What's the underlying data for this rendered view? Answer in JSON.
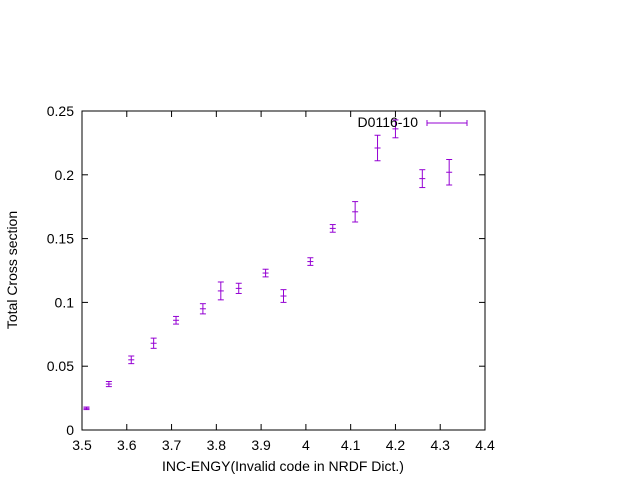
{
  "chart_data": {
    "type": "scatter",
    "title": "",
    "xlabel": "INC-ENGY(Invalid code in NRDF Dict.)",
    "ylabel": "Total Cross section",
    "xlim": [
      3.5,
      4.4
    ],
    "ylim": [
      0,
      0.25
    ],
    "xticks": [
      "3.5",
      "3.6",
      "3.7",
      "3.8",
      "3.9",
      "4",
      "4.1",
      "4.2",
      "4.3",
      "4.4"
    ],
    "yticks": [
      "0",
      "0.05",
      "0.1",
      "0.15",
      "0.2",
      "0.25"
    ],
    "grid": false,
    "legend_position": "top-right",
    "series": [
      {
        "name": "D0116-10",
        "color": "#9400d3",
        "points": [
          {
            "x": 3.51,
            "y": 0.017,
            "err": 0.001
          },
          {
            "x": 3.56,
            "y": 0.036,
            "err": 0.002
          },
          {
            "x": 3.61,
            "y": 0.055,
            "err": 0.003
          },
          {
            "x": 3.66,
            "y": 0.068,
            "err": 0.004
          },
          {
            "x": 3.71,
            "y": 0.086,
            "err": 0.003
          },
          {
            "x": 3.77,
            "y": 0.095,
            "err": 0.004
          },
          {
            "x": 3.81,
            "y": 0.109,
            "err": 0.007
          },
          {
            "x": 3.85,
            "y": 0.111,
            "err": 0.004
          },
          {
            "x": 3.91,
            "y": 0.123,
            "err": 0.003
          },
          {
            "x": 3.95,
            "y": 0.105,
            "err": 0.005
          },
          {
            "x": 4.01,
            "y": 0.132,
            "err": 0.003
          },
          {
            "x": 4.06,
            "y": 0.158,
            "err": 0.003
          },
          {
            "x": 4.11,
            "y": 0.171,
            "err": 0.008
          },
          {
            "x": 4.16,
            "y": 0.221,
            "err": 0.01
          },
          {
            "x": 4.2,
            "y": 0.236,
            "err": 0.007
          },
          {
            "x": 4.26,
            "y": 0.197,
            "err": 0.007
          },
          {
            "x": 4.32,
            "y": 0.202,
            "err": 0.01
          }
        ]
      }
    ]
  }
}
